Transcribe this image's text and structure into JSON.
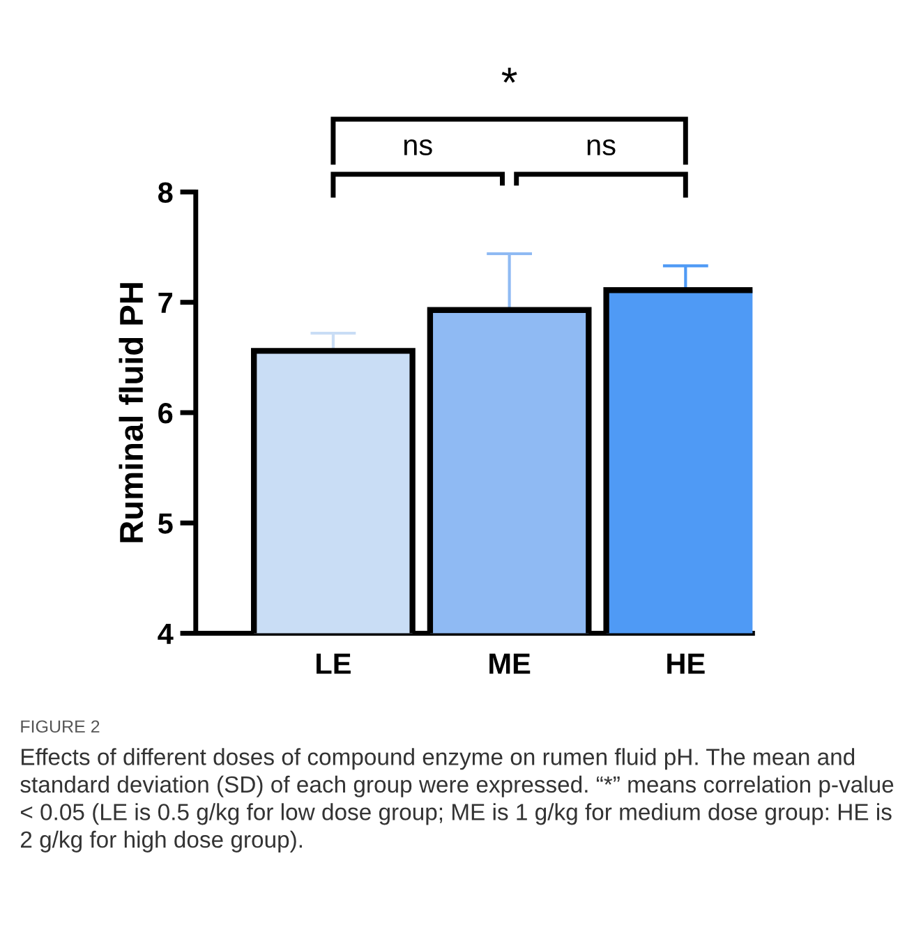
{
  "chart_data": {
    "type": "bar",
    "ylabel": "Ruminal fluid PH",
    "categories": [
      "LE",
      "ME",
      "HE"
    ],
    "values": [
      6.56,
      6.93,
      7.11
    ],
    "errors": [
      [
        6.56,
        6.72
      ],
      [
        6.93,
        7.44
      ],
      [
        7.11,
        7.33
      ]
    ],
    "colors": [
      "#c9ddf5",
      "#8fbaf3",
      "#4f9af5"
    ],
    "ylim": [
      4,
      8
    ],
    "yticks": [
      4,
      5,
      6,
      7,
      8
    ],
    "grid": false,
    "annotations": [
      "ns",
      "ns",
      "*",
      "FIGURE 2",
      "Effects of different doses of compound enzyme on rumen fluid pH. The mean and standard deviation (SD) of each group were expressed. “*” means correlation p-value < 0.05 (LE is 0.5 g/kg for low dose group; ME is 1 g/kg for medium dose group: HE is 2 g/kg for high dose group)."
    ]
  }
}
